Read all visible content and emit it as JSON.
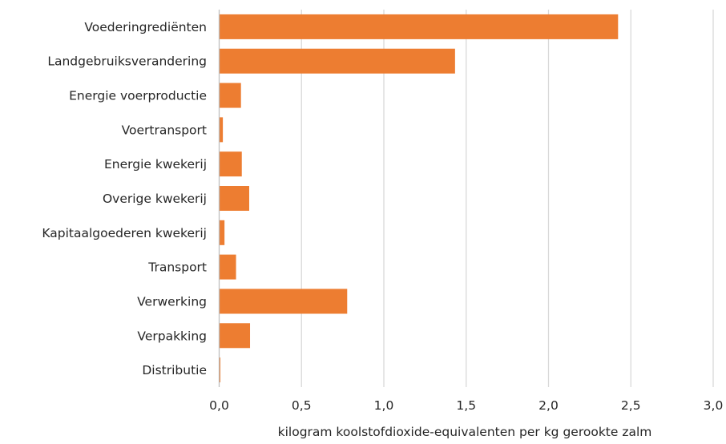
{
  "chart_data": {
    "type": "bar",
    "orientation": "horizontal",
    "categories": [
      "Voederingrediënten",
      "Landgebruiksverandering",
      "Energie voerproductie",
      "Voertransport",
      "Energie kwekerij",
      "Overige kwekerij",
      "Kapitaalgoederen kwekerij",
      "Transport",
      "Verwerking",
      "Verpakking",
      "Distributie"
    ],
    "values": [
      2.42,
      1.43,
      0.13,
      0.02,
      0.135,
      0.18,
      0.03,
      0.1,
      0.775,
      0.185,
      0.005
    ],
    "xlabel": "kilogram koolstofdioxide-equivalenten per kg gerookte zalm",
    "xlim": [
      0,
      3
    ],
    "xticks": [
      0,
      0.5,
      1,
      1.5,
      2,
      2.5,
      3
    ],
    "xtick_labels": [
      "0,0",
      "0,5",
      "1,0",
      "1,5",
      "2,0",
      "2,5",
      "3,0"
    ],
    "grid": true,
    "legend": "none",
    "bar_color": "#ED7D31"
  }
}
